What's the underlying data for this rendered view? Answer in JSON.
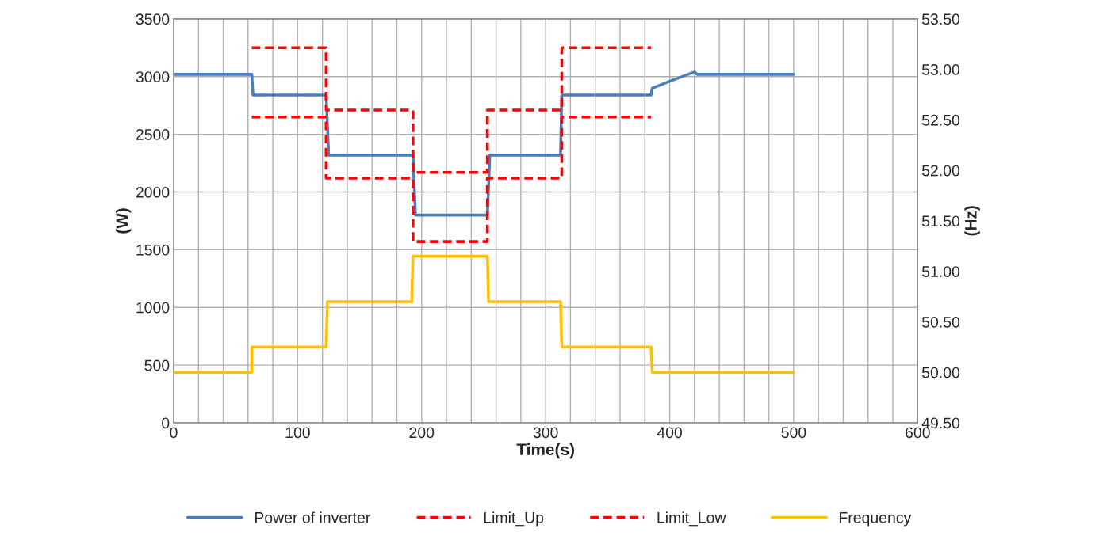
{
  "chart_data": {
    "type": "line",
    "xlabel": "Time(s)",
    "ylabel": "(W)",
    "y2label": "(Hz)",
    "xlim": [
      0,
      600
    ],
    "xticks": [
      0,
      {
        "value": 20,
        "label": null
      },
      {
        "value": 40,
        "label": null
      },
      {
        "value": 60,
        "label": null
      },
      {
        "value": 80,
        "label": null
      },
      100,
      {
        "value": 120,
        "label": null
      },
      {
        "value": 140,
        "label": null
      },
      {
        "value": 160,
        "label": null
      },
      {
        "value": 180,
        "label": null
      },
      200,
      {
        "value": 220,
        "label": null
      },
      {
        "value": 240,
        "label": null
      },
      {
        "value": 260,
        "label": null
      },
      {
        "value": 280,
        "label": null
      },
      300,
      {
        "value": 320,
        "label": null
      },
      {
        "value": 340,
        "label": null
      },
      {
        "value": 360,
        "label": null
      },
      {
        "value": 380,
        "label": null
      },
      400,
      {
        "value": 420,
        "label": null
      },
      {
        "value": 440,
        "label": null
      },
      {
        "value": 460,
        "label": null
      },
      {
        "value": 480,
        "label": null
      },
      500,
      {
        "value": 520,
        "label": null
      },
      {
        "value": 540,
        "label": null
      },
      {
        "value": 560,
        "label": null
      },
      {
        "value": 580,
        "label": null
      },
      600
    ],
    "ylim": [
      0,
      3500
    ],
    "yticks": [
      0,
      500,
      1000,
      1500,
      2000,
      2500,
      3000,
      3500
    ],
    "y2lim": [
      49.5,
      53.5
    ],
    "y2ticks": [
      {
        "value": 49.5,
        "label": "49.50"
      },
      {
        "value": 50,
        "label": "50.00"
      },
      {
        "value": 50.5,
        "label": "50.50"
      },
      {
        "value": 51,
        "label": "51.00"
      },
      {
        "value": 51.5,
        "label": "51.50"
      },
      {
        "value": 52,
        "label": "52.00"
      },
      {
        "value": 52.5,
        "label": "52.50"
      },
      {
        "value": 53,
        "label": "53.00"
      },
      {
        "value": 53.5,
        "label": "53.50"
      }
    ],
    "grid": true,
    "legend": "bottom",
    "marker": "none",
    "series": [
      {
        "name": "Power of inverter",
        "color": "#4a7ebb",
        "line_style": "solid",
        "x": [
          0,
          63,
          64,
          123,
          125,
          193,
          195,
          253,
          255,
          312,
          313,
          385,
          386,
          400,
          420,
          422,
          500
        ],
        "values": [
          3020,
          3020,
          2840,
          2840,
          2320,
          2320,
          1800,
          1800,
          2320,
          2320,
          2840,
          2840,
          2900,
          2960,
          3040,
          3020,
          3020
        ]
      },
      {
        "name": "Limit_Up",
        "color": "#ff0000",
        "line_style": "dashed",
        "x": [
          63,
          123,
          123,
          193,
          193,
          253,
          253,
          313,
          313,
          385
        ],
        "values": [
          3250,
          3250,
          2710,
          2710,
          2170,
          2170,
          2710,
          2710,
          3250,
          3250
        ]
      },
      {
        "name": "Limit_Low",
        "color": "#ff0000",
        "line_style": "dashed",
        "x": [
          63,
          123,
          123,
          193,
          193,
          253,
          253,
          313,
          313,
          385
        ],
        "values": [
          2650,
          2650,
          2120,
          2120,
          1570,
          1570,
          2120,
          2120,
          2650,
          2650
        ]
      },
      {
        "name": "Frequency",
        "color": "#ffc000",
        "line_style": "solid",
        "axis": "y2",
        "x": [
          0,
          63,
          63,
          123,
          124,
          192,
          193,
          253,
          254,
          312,
          313,
          385,
          386,
          500
        ],
        "values": [
          50,
          50,
          50.25,
          50.25,
          50.7,
          50.7,
          51.15,
          51.15,
          50.7,
          50.7,
          50.25,
          50.25,
          50,
          50
        ]
      }
    ]
  }
}
